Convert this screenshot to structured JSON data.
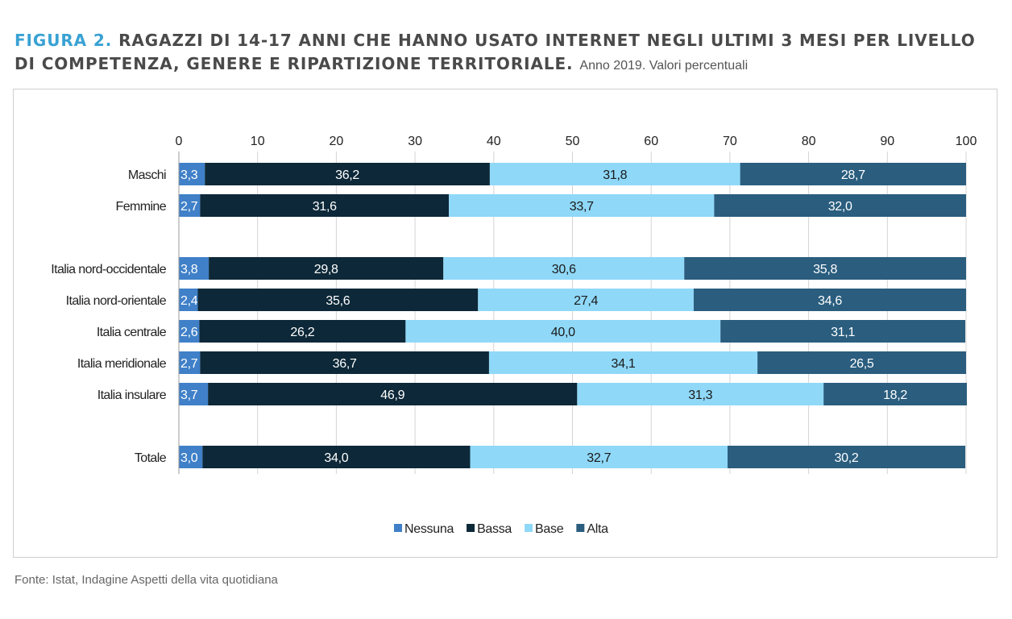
{
  "title": {
    "figure_label": "FIGURA 2.",
    "main": "RAGAZZI DI 14-17 ANNI CHE HANNO USATO INTERNET NEGLI ULTIMI 3 MESI PER LIVELLO DI COMPETENZA, GENERE E RIPARTIZIONE TERRITORIALE.",
    "subtitle": "Anno 2019. Valori percentuali"
  },
  "source": "Fonte: Istat, Indagine Aspetti della vita quotidiana",
  "chart_data": {
    "type": "bar",
    "orientation": "horizontal",
    "stacked": true,
    "xlim": [
      0,
      100
    ],
    "xticks": [
      0,
      10,
      20,
      30,
      40,
      50,
      60,
      70,
      80,
      90,
      100
    ],
    "grid": true,
    "legend_position": "bottom",
    "categories": [
      "Maschi",
      "Femmine",
      "Italia nord-occidentale",
      "Italia nord-orientale",
      "Italia centrale",
      "Italia meridionale",
      "Italia insulare",
      "Totale"
    ],
    "value_labels": {
      "Nessuna": [
        "3,3",
        "2,7",
        "3,8",
        "2,4",
        "2,6",
        "2,7",
        "3,7",
        "3,0"
      ],
      "Bassa": [
        "36,2",
        "31,6",
        "29,8",
        "35,6",
        "26,2",
        "36,7",
        "46,9",
        "34,0"
      ],
      "Base": [
        "31,8",
        "33,7",
        "30,6",
        "27,4",
        "40,0",
        "34,1",
        "31,3",
        "32,7"
      ],
      "Alta": [
        "28,7",
        "32,0",
        "35,8",
        "34,6",
        "31,1",
        "26,5",
        "18,2",
        "30,2"
      ]
    },
    "series": [
      {
        "name": "Nessuna",
        "color": "#3f80c8",
        "label_color": "#ffffff",
        "values": [
          3.3,
          2.7,
          3.8,
          2.4,
          2.6,
          2.7,
          3.7,
          3.0
        ]
      },
      {
        "name": "Bassa",
        "color": "#0d2838",
        "label_color": "#ffffff",
        "values": [
          36.2,
          31.6,
          29.8,
          35.6,
          26.2,
          36.7,
          46.9,
          34.0
        ]
      },
      {
        "name": "Base",
        "color": "#8fd8f8",
        "label_color": "#1a1a1a",
        "values": [
          31.8,
          33.7,
          30.6,
          27.4,
          40.0,
          34.1,
          31.3,
          32.7
        ]
      },
      {
        "name": "Alta",
        "color": "#2a5d7e",
        "label_color": "#ffffff",
        "values": [
          28.7,
          32.0,
          35.8,
          34.6,
          31.1,
          26.5,
          18.2,
          30.2
        ]
      }
    ]
  }
}
